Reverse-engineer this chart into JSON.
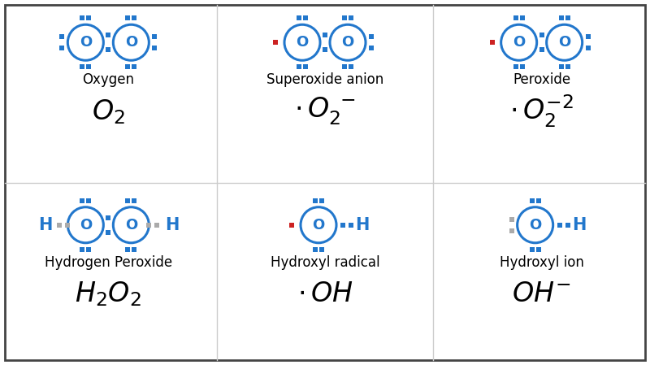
{
  "bg_color": "#ffffff",
  "border_color": "#555555",
  "blue": "#2277cc",
  "red": "#cc2222",
  "gray": "#aaaaaa",
  "black": "#111111",
  "cells": [
    {
      "col": 0,
      "row": 0,
      "name": "Oxygen",
      "struct": "OO",
      "red_dot_left": false,
      "red_dot_right": false,
      "extra_right_dots": false
    },
    {
      "col": 1,
      "row": 0,
      "name": "Superoxide anion",
      "struct": "OO",
      "red_dot_left": true,
      "red_dot_right": false,
      "extra_right_dots": true
    },
    {
      "col": 2,
      "row": 0,
      "name": "Peroxide",
      "struct": "OO",
      "red_dot_left": true,
      "red_dot_right": true,
      "extra_right_dots": true
    },
    {
      "col": 0,
      "row": 1,
      "name": "Hydrogen Peroxide",
      "struct": "HOOH",
      "red_dot_left": false,
      "red_dot_right": false,
      "extra_right_dots": false
    },
    {
      "col": 1,
      "row": 1,
      "name": "Hydroxyl radical",
      "struct": "OH",
      "red_dot_left": true,
      "red_dot_right": false,
      "extra_right_dots": false
    },
    {
      "col": 2,
      "row": 1,
      "name": "Hydroxyl ion",
      "struct": "OH",
      "red_dot_left": false,
      "red_dot_right": false,
      "extra_right_dots": false,
      "gray_left": true
    }
  ]
}
